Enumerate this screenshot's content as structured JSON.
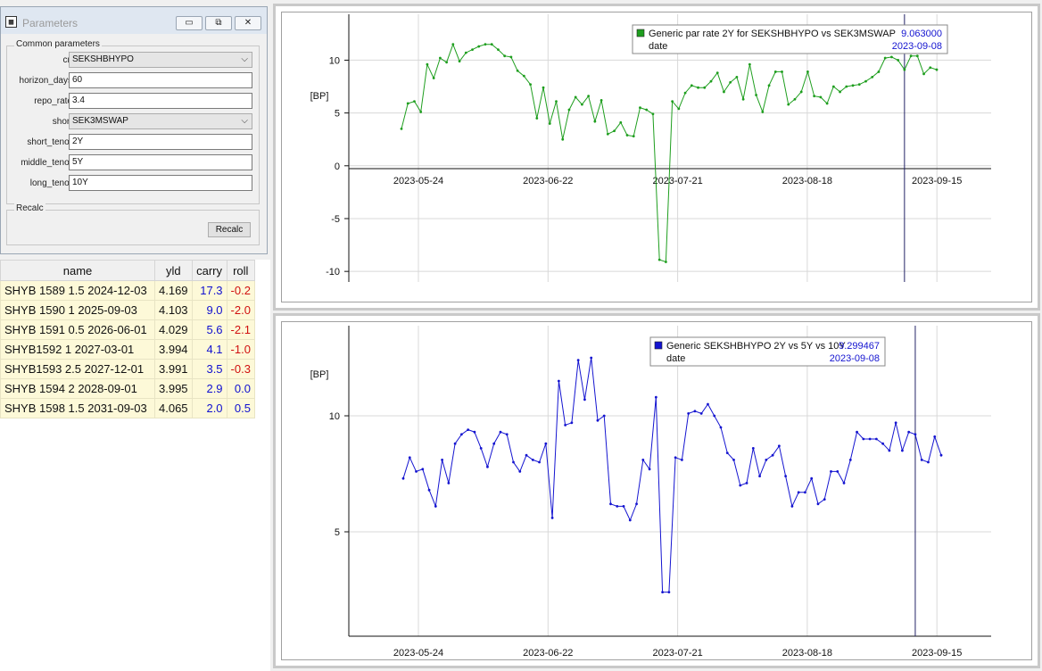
{
  "params_window": {
    "title": "Parameters",
    "icon": "app-grid-icon",
    "minimize": "▭",
    "restore": "⧉",
    "close": "✕",
    "group_common": "Common parameters",
    "fields": [
      {
        "label": "cn",
        "value": "SEKSHBHYPO",
        "type": "select"
      },
      {
        "label": "horizon_days",
        "value": "60",
        "type": "input"
      },
      {
        "label": "repo_rate",
        "value": "3.4",
        "type": "input"
      },
      {
        "label": "short",
        "value": "SEK3MSWAP",
        "type": "select"
      },
      {
        "label": "short_tenor",
        "value": "2Y",
        "type": "input"
      },
      {
        "label": "middle_tenor",
        "value": "5Y",
        "type": "input"
      },
      {
        "label": "long_tenor",
        "value": "10Y",
        "type": "input"
      }
    ],
    "group_recalc": "Recalc",
    "recalc_button": "Recalc"
  },
  "table": {
    "headers": [
      "name",
      "yld",
      "carry",
      "roll"
    ],
    "rows": [
      [
        "SHYB 1589 1.5 2024-12-03",
        "4.169",
        "17.3",
        "-0.2"
      ],
      [
        "SHYB 1590 1 2025-09-03",
        "4.103",
        "9.0",
        "-2.0"
      ],
      [
        "SHYB 1591 0.5 2026-06-01",
        "4.029",
        "5.6",
        "-2.1"
      ],
      [
        "SHYB1592 1 2027-03-01",
        "3.994",
        "4.1",
        "-1.0"
      ],
      [
        "SHYB1593 2.5 2027-12-01",
        "3.991",
        "3.5",
        "-0.3"
      ],
      [
        "SHYB 1594 2 2028-09-01",
        "3.995",
        "2.9",
        "0.0"
      ],
      [
        "SHYB 1598 1.5 2031-09-03",
        "4.065",
        "2.0",
        "0.5"
      ]
    ]
  },
  "chart_data": [
    {
      "type": "line",
      "legend": {
        "series": "Generic par rate 2Y for SEKSHBHYPO vs SEK3MSWAP",
        "value": "9.063000",
        "date_label": "date",
        "date_value": "2023-09-08"
      },
      "ylabel": "[BP]",
      "ylim": [
        -11,
        13.5
      ],
      "yticks": [
        -10,
        -5,
        0,
        5,
        10
      ],
      "xticks": [
        "2023-05-24",
        "2023-06-22",
        "2023-07-21",
        "2023-08-18",
        "2023-09-15"
      ],
      "color": "#1e9e1e",
      "cursor_x": 112,
      "series_start_day": 0,
      "values": [
        3.5,
        5.9,
        6.1,
        5.1,
        9.6,
        8.3,
        10.2,
        9.8,
        11.5,
        9.9,
        10.7,
        11.0,
        11.3,
        11.5,
        11.5,
        11.0,
        10.4,
        10.3,
        9.0,
        8.5,
        7.7,
        4.5,
        7.4,
        4.0,
        6.1,
        2.5,
        5.3,
        6.5,
        5.8,
        6.6,
        4.2,
        6.2,
        3.0,
        3.3,
        4.1,
        2.9,
        2.8,
        5.5,
        5.3,
        4.9,
        -8.9,
        -9.1,
        6.1,
        5.4,
        6.9,
        7.6,
        7.4,
        7.4,
        8.0,
        8.8,
        7.0,
        7.9,
        8.4,
        6.3,
        9.6,
        6.7,
        5.1,
        7.6,
        8.9,
        8.9,
        5.8,
        6.3,
        7.0,
        8.9,
        6.6,
        6.5,
        5.9,
        7.5,
        7.0,
        7.5,
        7.6,
        7.7,
        8.0,
        8.4,
        8.9,
        10.2,
        10.3,
        10.0,
        9.1,
        10.4,
        10.4,
        8.7,
        9.3,
        9.1
      ],
      "x_days": [
        0,
        2,
        4,
        6,
        8,
        10,
        12,
        14,
        16,
        18,
        20,
        22,
        24,
        26,
        28,
        30,
        32,
        34,
        35,
        37,
        39,
        41,
        43,
        45,
        47,
        49,
        51,
        53,
        55,
        57,
        59,
        61,
        63,
        65,
        67,
        69,
        71,
        73,
        75,
        77,
        79,
        81,
        83,
        85,
        87,
        89,
        91,
        93,
        95,
        97,
        99,
        101,
        103,
        105,
        107,
        109,
        111,
        113,
        115,
        117,
        119,
        121,
        123,
        125,
        127,
        129,
        131,
        133,
        135,
        137,
        139,
        141,
        143,
        145,
        147,
        149,
        151,
        153,
        155,
        157,
        159,
        161,
        163,
        165
      ]
    },
    {
      "type": "line",
      "legend": {
        "series": "Generic SEKSHBHYPO 2Y vs 5Y vs 10Y",
        "value": "9.299467",
        "date_label": "date",
        "date_value": "2023-09-08"
      },
      "ylabel": "[BP]",
      "ylim": [
        0.5,
        13.5
      ],
      "yticks": [
        5,
        10
      ],
      "xticks": [
        "2023-05-24",
        "2023-06-22",
        "2023-07-21",
        "2023-08-18",
        "2023-09-15"
      ],
      "color": "#1414d0",
      "values": [
        7.3,
        8.2,
        7.6,
        7.7,
        6.8,
        6.1,
        8.1,
        7.1,
        8.8,
        9.2,
        9.4,
        9.3,
        8.6,
        7.8,
        8.8,
        9.3,
        9.2,
        8.0,
        7.6,
        8.3,
        8.1,
        8.0,
        8.8,
        5.6,
        11.5,
        9.6,
        9.7,
        12.4,
        10.7,
        12.5,
        9.8,
        10.0,
        6.2,
        6.1,
        6.1,
        5.5,
        6.2,
        8.1,
        7.7,
        10.8,
        2.4,
        2.4,
        8.2,
        8.1,
        10.1,
        10.2,
        10.1,
        10.5,
        10.0,
        9.5,
        8.4,
        8.1,
        7.0,
        7.1,
        8.6,
        7.4,
        8.1,
        8.3,
        8.7,
        7.4,
        6.1,
        6.7,
        6.7,
        7.3,
        6.2,
        6.4,
        7.6,
        7.6,
        7.1,
        8.1,
        9.3,
        9.0,
        9.0,
        9.0,
        8.8,
        8.5,
        9.7,
        8.5,
        9.3,
        9.2,
        8.1,
        8.0,
        9.1,
        8.3
      ]
    }
  ]
}
